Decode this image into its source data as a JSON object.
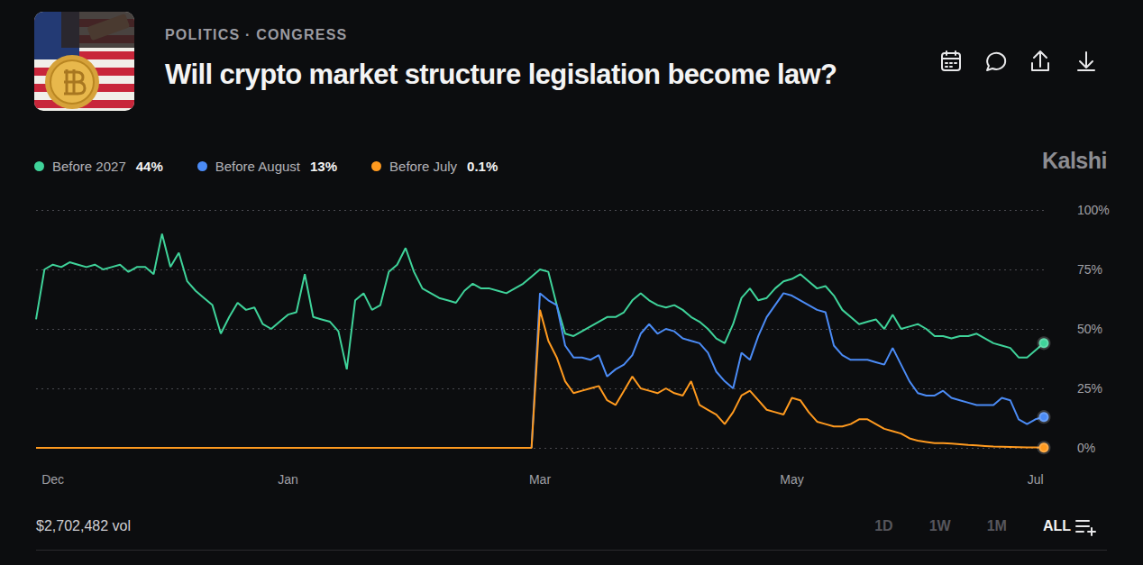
{
  "chart_data": {
    "type": "line",
    "category": "POLITICS · CONGRESS",
    "title": "Will crypto market structure legislation become law?",
    "brand": "Kalshi",
    "volume": "$2,702,482 vol",
    "range_buttons": [
      "1D",
      "1W",
      "1M",
      "ALL"
    ],
    "active_range": "ALL",
    "legend": "top-left",
    "grid": true,
    "ylim": [
      0,
      100
    ],
    "yticks": [
      {
        "value": 0,
        "label": "0%"
      },
      {
        "value": 25,
        "label": "25%"
      },
      {
        "value": 50,
        "label": "50%"
      },
      {
        "value": 75,
        "label": "75%"
      },
      {
        "value": 100,
        "label": "100%"
      }
    ],
    "categories": [
      null,
      null,
      "Dec",
      null,
      null,
      null,
      null,
      null,
      null,
      null,
      null,
      null,
      null,
      null,
      null,
      null,
      null,
      null,
      null,
      null,
      null,
      null,
      null,
      null,
      null,
      null,
      null,
      null,
      null,
      null,
      "Jan",
      null,
      null,
      null,
      null,
      null,
      null,
      null,
      null,
      null,
      null,
      null,
      null,
      null,
      null,
      null,
      null,
      null,
      null,
      null,
      null,
      null,
      null,
      null,
      null,
      null,
      null,
      null,
      null,
      null,
      "Mar",
      null,
      null,
      null,
      null,
      null,
      null,
      null,
      null,
      null,
      null,
      null,
      null,
      null,
      null,
      null,
      null,
      null,
      null,
      null,
      null,
      null,
      null,
      null,
      null,
      null,
      null,
      null,
      null,
      null,
      "May",
      null,
      null,
      null,
      null,
      null,
      null,
      null,
      null,
      null,
      null,
      null,
      null,
      null,
      null,
      null,
      null,
      null,
      null,
      null,
      null,
      null,
      null,
      null,
      null,
      null,
      null,
      null,
      null,
      "Jul",
      null
    ],
    "series": [
      {
        "name": "Before 2027",
        "current": "44%",
        "color": "#3fd39a",
        "values": [
          54,
          75,
          77,
          76,
          78,
          77,
          76,
          77,
          75,
          76,
          77,
          74,
          76,
          76,
          73,
          90,
          76,
          82,
          70,
          66,
          63,
          60,
          48,
          55,
          61,
          58,
          59,
          52,
          50,
          53,
          56,
          57,
          73,
          55,
          54,
          53,
          49,
          33,
          62,
          65,
          58,
          60,
          74,
          77,
          84,
          74,
          67,
          65,
          63,
          62,
          61,
          66,
          69,
          67,
          67,
          66,
          65,
          67,
          69,
          72,
          75,
          74,
          60,
          48,
          47,
          49,
          51,
          53,
          55,
          55,
          57,
          62,
          65,
          62,
          60,
          59,
          60,
          58,
          55,
          53,
          50,
          46,
          44,
          52,
          63,
          67,
          62,
          63,
          67,
          70,
          71,
          73,
          70,
          67,
          68,
          64,
          58,
          55,
          52,
          53,
          54,
          50,
          56,
          50,
          51,
          52,
          50,
          47,
          47,
          46,
          47,
          47,
          48,
          46,
          44,
          43,
          42,
          38,
          38,
          41,
          44
        ]
      },
      {
        "name": "Before August",
        "current": "13%",
        "color": "#4b8bf5",
        "values": [
          0,
          0,
          0,
          0,
          0,
          0,
          0,
          0,
          0,
          0,
          0,
          0,
          0,
          0,
          0,
          0,
          0,
          0,
          0,
          0,
          0,
          0,
          0,
          0,
          0,
          0,
          0,
          0,
          0,
          0,
          0,
          0,
          0,
          0,
          0,
          0,
          0,
          0,
          0,
          0,
          0,
          0,
          0,
          0,
          0,
          0,
          0,
          0,
          0,
          0,
          0,
          0,
          0,
          0,
          0,
          0,
          0,
          0,
          0,
          0,
          65,
          62,
          60,
          43,
          38,
          38,
          37,
          39,
          30,
          33,
          35,
          39,
          48,
          52,
          48,
          50,
          49,
          46,
          45,
          44,
          40,
          32,
          28,
          25,
          40,
          37,
          47,
          55,
          60,
          65,
          64,
          62,
          60,
          58,
          57,
          43,
          39,
          37,
          37,
          37,
          36,
          35,
          42,
          35,
          28,
          23,
          22,
          22,
          24,
          21,
          20,
          19,
          18,
          18,
          18,
          21,
          20,
          12,
          10,
          12,
          13
        ]
      },
      {
        "name": "Before July",
        "current": "0.1%",
        "color": "#ff9a1f",
        "values": [
          0,
          0,
          0,
          0,
          0,
          0,
          0,
          0,
          0,
          0,
          0,
          0,
          0,
          0,
          0,
          0,
          0,
          0,
          0,
          0,
          0,
          0,
          0,
          0,
          0,
          0,
          0,
          0,
          0,
          0,
          0,
          0,
          0,
          0,
          0,
          0,
          0,
          0,
          0,
          0,
          0,
          0,
          0,
          0,
          0,
          0,
          0,
          0,
          0,
          0,
          0,
          0,
          0,
          0,
          0,
          0,
          0,
          0,
          0,
          0,
          58,
          45,
          38,
          28,
          23,
          24,
          25,
          26,
          20,
          18,
          24,
          30,
          25,
          24,
          23,
          25,
          23,
          22,
          28,
          18,
          16,
          14,
          10,
          15,
          22,
          24,
          20,
          16,
          15,
          14,
          21,
          20,
          15,
          11,
          10,
          9,
          9,
          10,
          12,
          12,
          10,
          8,
          7,
          6,
          4,
          3,
          2.5,
          2,
          2,
          1.8,
          1.5,
          1.2,
          1,
          0.8,
          0.6,
          0.5,
          0.4,
          0.3,
          0.2,
          0.15,
          0.1
        ]
      }
    ]
  }
}
